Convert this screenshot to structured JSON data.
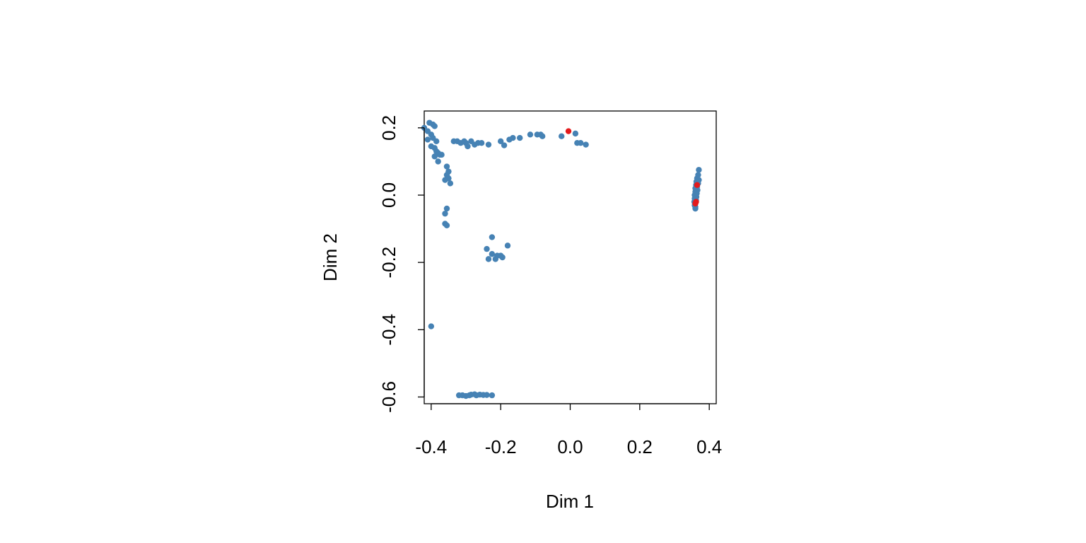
{
  "chart_data": {
    "type": "scatter",
    "title": "",
    "xlabel": "Dim 1",
    "ylabel": "Dim 2",
    "xlim": [
      -0.42,
      0.42
    ],
    "ylim": [
      -0.62,
      0.25
    ],
    "x_ticks": [
      -0.4,
      -0.2,
      0.0,
      0.2,
      0.4
    ],
    "x_tick_labels": [
      "-0.4",
      "-0.2",
      "0.0",
      "0.2",
      "0.4"
    ],
    "y_ticks": [
      -0.6,
      -0.4,
      -0.2,
      0.0,
      0.2
    ],
    "y_tick_labels": [
      "-0.6",
      "-0.4",
      "-0.2",
      "0.0",
      "0.2"
    ],
    "grid": false,
    "colors": {
      "blue": "#4682B4",
      "red": "#E41A1C"
    },
    "series": [
      {
        "color": "#4682B4",
        "points": [
          [
            -0.42,
            0.2
          ],
          [
            -0.41,
            0.19
          ],
          [
            -0.405,
            0.215
          ],
          [
            -0.395,
            0.21
          ],
          [
            -0.39,
            0.205
          ],
          [
            -0.4,
            0.18
          ],
          [
            -0.41,
            0.165
          ],
          [
            -0.395,
            0.17
          ],
          [
            -0.385,
            0.16
          ],
          [
            -0.4,
            0.145
          ],
          [
            -0.39,
            0.14
          ],
          [
            -0.385,
            0.13
          ],
          [
            -0.38,
            0.125
          ],
          [
            -0.375,
            0.12
          ],
          [
            -0.39,
            0.115
          ],
          [
            -0.38,
            0.1
          ],
          [
            -0.37,
            0.12
          ],
          [
            -0.355,
            0.085
          ],
          [
            -0.35,
            0.07
          ],
          [
            -0.355,
            0.06
          ],
          [
            -0.35,
            0.05
          ],
          [
            -0.345,
            0.035
          ],
          [
            -0.36,
            0.045
          ],
          [
            -0.355,
            -0.04
          ],
          [
            -0.36,
            -0.055
          ],
          [
            -0.36,
            -0.085
          ],
          [
            -0.355,
            -0.09
          ],
          [
            -0.4,
            -0.39
          ],
          [
            -0.335,
            0.16
          ],
          [
            -0.325,
            0.16
          ],
          [
            -0.315,
            0.155
          ],
          [
            -0.305,
            0.16
          ],
          [
            -0.3,
            0.155
          ],
          [
            -0.295,
            0.145
          ],
          [
            -0.285,
            0.16
          ],
          [
            -0.275,
            0.15
          ],
          [
            -0.265,
            0.155
          ],
          [
            -0.255,
            0.155
          ],
          [
            -0.235,
            0.15
          ],
          [
            -0.2,
            0.16
          ],
          [
            -0.19,
            0.148
          ],
          [
            -0.175,
            0.165
          ],
          [
            -0.165,
            0.17
          ],
          [
            -0.145,
            0.17
          ],
          [
            -0.115,
            0.18
          ],
          [
            -0.095,
            0.18
          ],
          [
            -0.085,
            0.18
          ],
          [
            -0.08,
            0.175
          ],
          [
            -0.025,
            0.175
          ],
          [
            0.015,
            0.183
          ],
          [
            0.02,
            0.155
          ],
          [
            0.03,
            0.155
          ],
          [
            0.045,
            0.15
          ],
          [
            -0.225,
            -0.125
          ],
          [
            -0.24,
            -0.16
          ],
          [
            -0.235,
            -0.19
          ],
          [
            -0.225,
            -0.175
          ],
          [
            -0.215,
            -0.19
          ],
          [
            -0.21,
            -0.18
          ],
          [
            -0.2,
            -0.18
          ],
          [
            -0.195,
            -0.185
          ],
          [
            -0.18,
            -0.15
          ],
          [
            -0.32,
            -0.595
          ],
          [
            -0.31,
            -0.595
          ],
          [
            -0.3,
            -0.597
          ],
          [
            -0.29,
            -0.595
          ],
          [
            -0.285,
            -0.593
          ],
          [
            -0.275,
            -0.592
          ],
          [
            -0.27,
            -0.595
          ],
          [
            -0.26,
            -0.593
          ],
          [
            -0.25,
            -0.594
          ],
          [
            -0.24,
            -0.594
          ],
          [
            -0.225,
            -0.595
          ],
          [
            0.37,
            0.075
          ],
          [
            0.368,
            0.06
          ],
          [
            0.365,
            0.05
          ],
          [
            0.37,
            0.045
          ],
          [
            0.363,
            0.04
          ],
          [
            0.368,
            0.035
          ],
          [
            0.362,
            0.03
          ],
          [
            0.365,
            0.025
          ],
          [
            0.36,
            0.02
          ],
          [
            0.366,
            0.015
          ],
          [
            0.36,
            0.01
          ],
          [
            0.364,
            0.005
          ],
          [
            0.358,
            0.0
          ],
          [
            0.363,
            -0.005
          ],
          [
            0.358,
            -0.01
          ],
          [
            0.362,
            -0.015
          ],
          [
            0.357,
            -0.02
          ],
          [
            0.36,
            -0.025
          ],
          [
            0.358,
            -0.03
          ],
          [
            0.36,
            -0.035
          ],
          [
            0.36,
            -0.04
          ]
        ]
      },
      {
        "color": "#E41A1C",
        "points": [
          [
            -0.005,
            0.19
          ],
          [
            0.365,
            0.03
          ],
          [
            0.362,
            -0.02
          ],
          [
            0.36,
            -0.025
          ]
        ]
      }
    ]
  }
}
